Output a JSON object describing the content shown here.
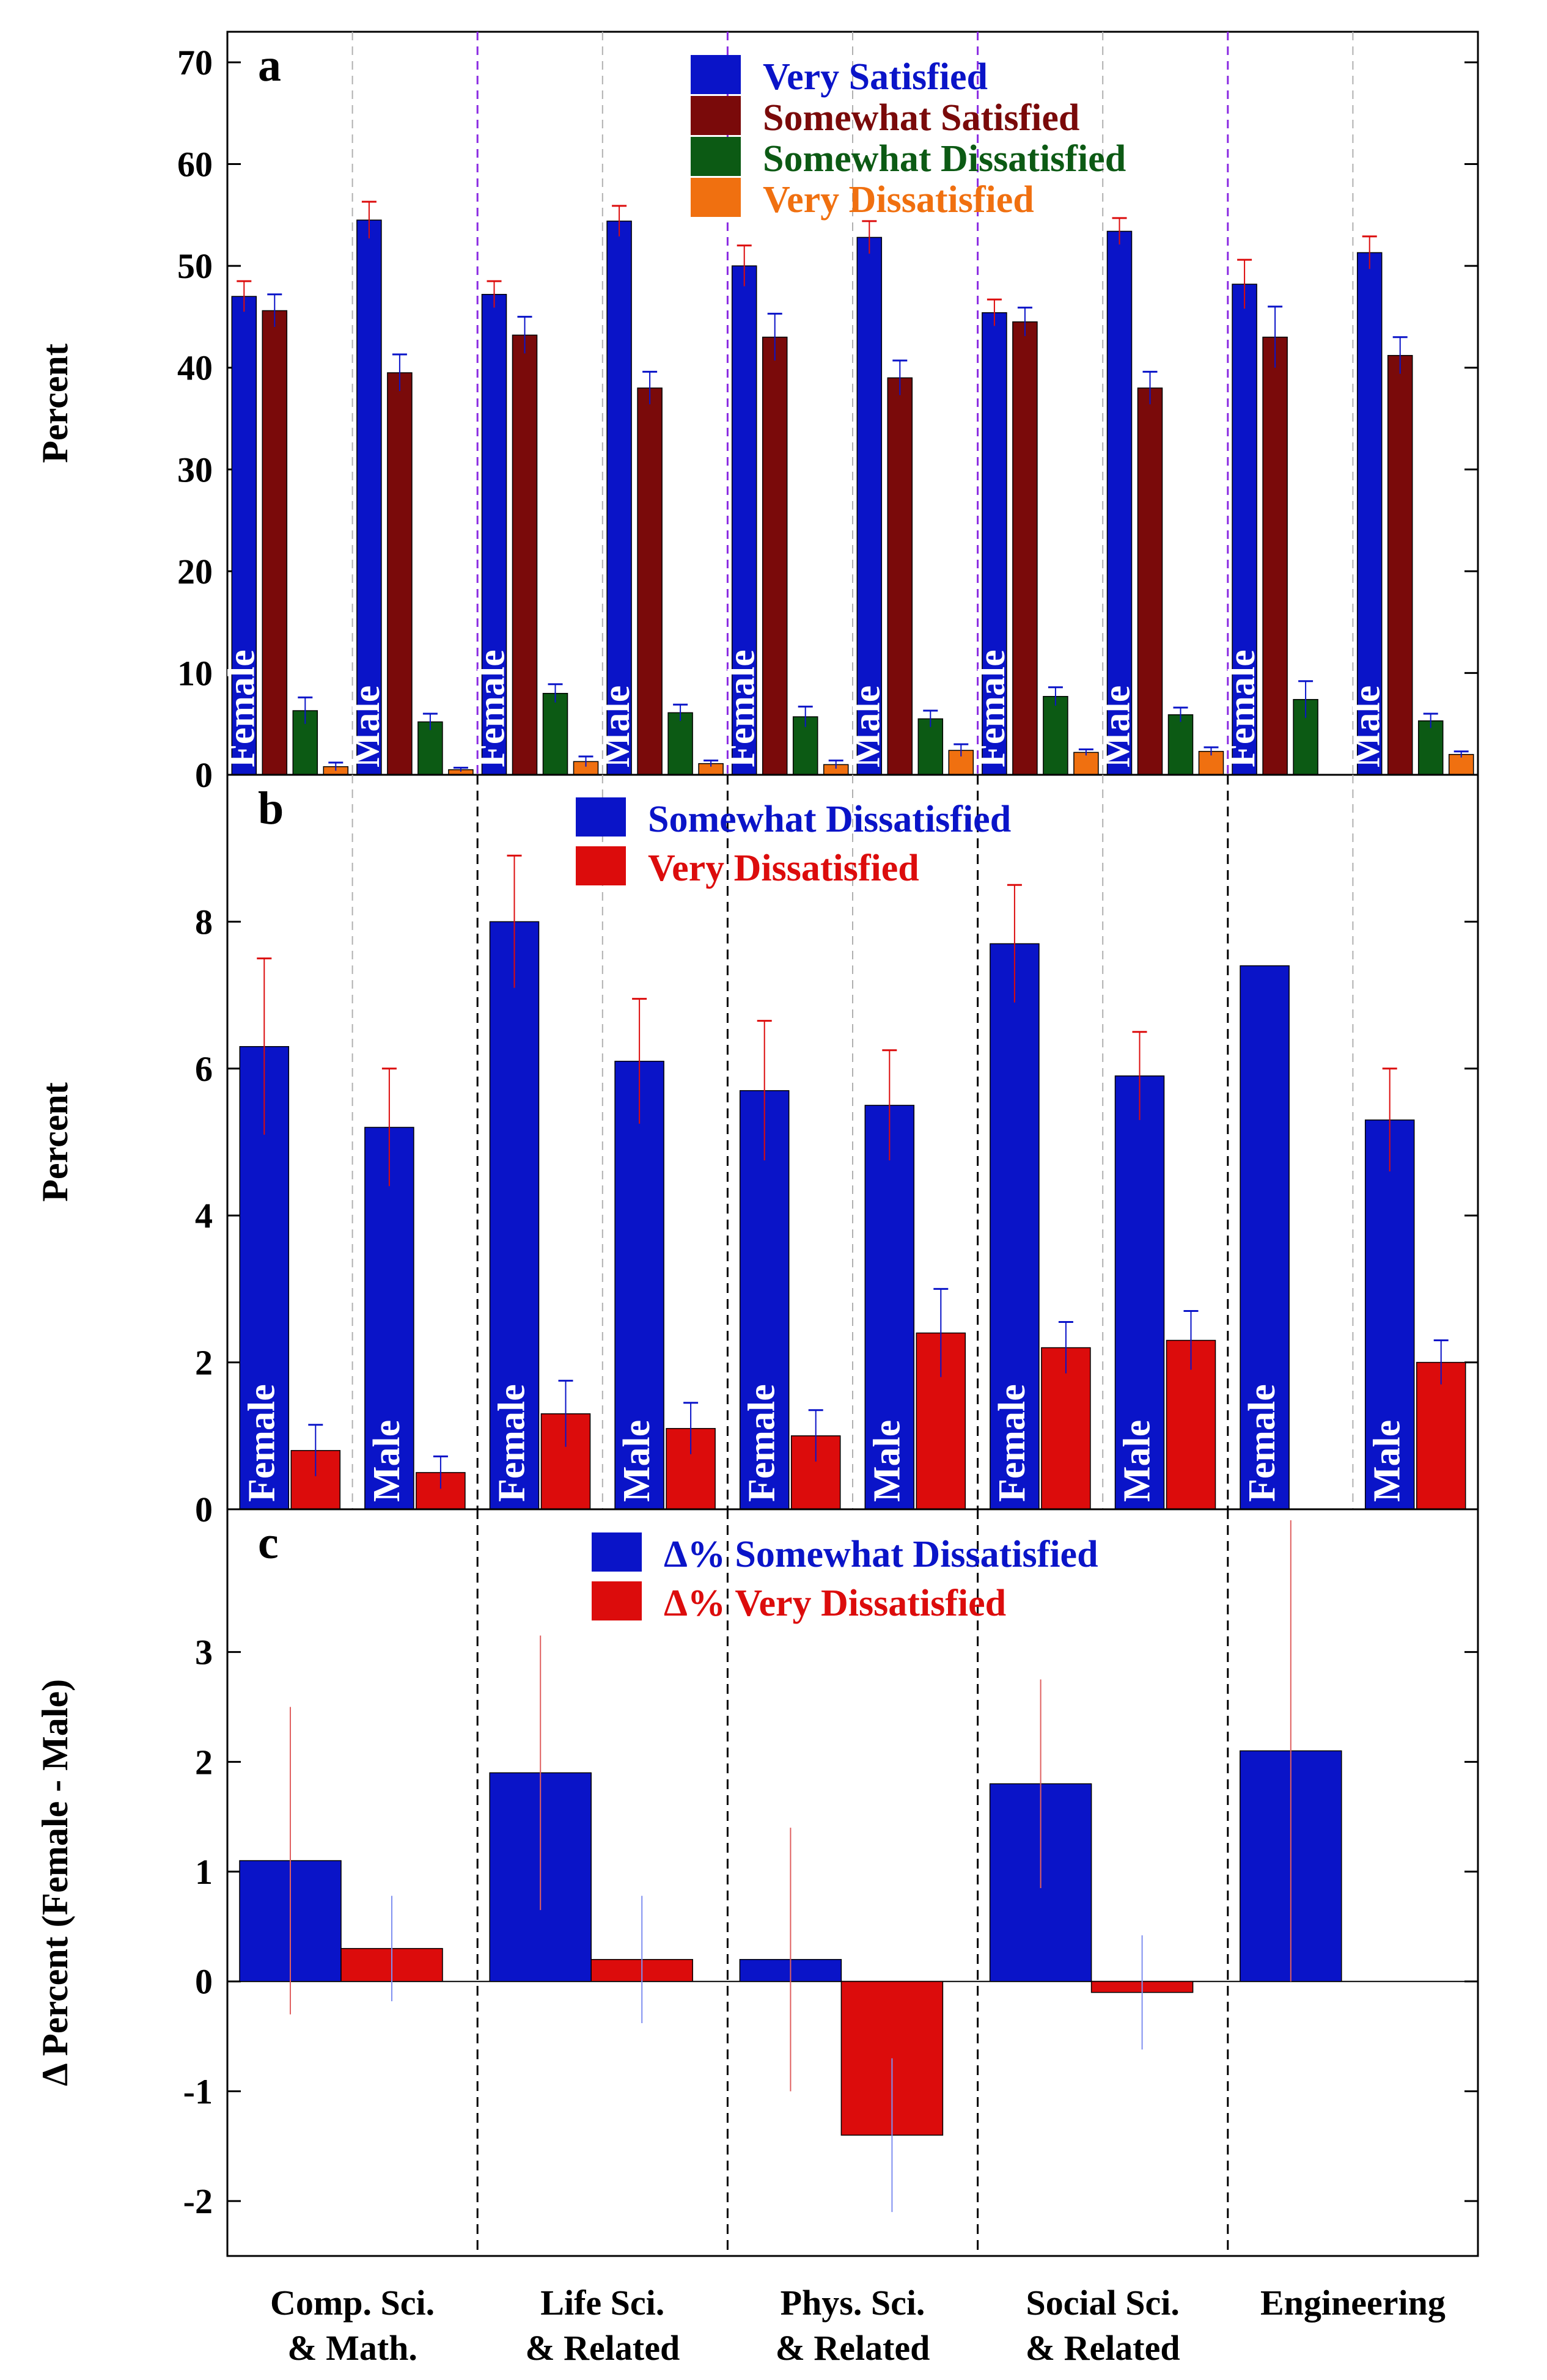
{
  "figure": {
    "colors": {
      "very_satisfied": "#0a14c8",
      "somewhat_satisfied": "#7a0a0a",
      "somewhat_dissatisfied_a": "#0c5a14",
      "very_dissatisfied_a": "#f07010",
      "blue": "#0a14c8",
      "red": "#dc0c0c",
      "purple_divider": "#8a2be2"
    }
  },
  "chart_data": [
    {
      "panel": "a",
      "type": "bar",
      "ylabel": "Percent",
      "ylim": [
        0,
        73
      ],
      "yticks": [
        "0",
        "10",
        "20",
        "30",
        "40",
        "50",
        "60",
        "70"
      ],
      "groups": [
        "Comp. Sci. & Math. Female",
        "Comp. Sci. & Math. Male",
        "Life Sci. & Related Female",
        "Life Sci. & Related Male",
        "Phys. Sci. & Related Female",
        "Phys. Sci. & Related Male",
        "Social Sci. & Related Female",
        "Social Sci. & Related Male",
        "Engineering Female",
        "Engineering Male"
      ],
      "group_labels": [
        "Female",
        "Male",
        "Female",
        "Male",
        "Female",
        "Male",
        "Female",
        "Male",
        "Female",
        "Male"
      ],
      "series": [
        {
          "name": "Very Satisfied",
          "values": [
            47.0,
            54.5,
            47.2,
            54.4,
            50.0,
            52.8,
            45.4,
            53.4,
            48.2,
            51.3
          ]
        },
        {
          "name": "Somewhat Satisfied",
          "values": [
            45.6,
            39.5,
            43.2,
            38.0,
            43.0,
            39.0,
            44.5,
            38.0,
            43.0,
            41.2
          ]
        },
        {
          "name": "Somewhat Dissatisfied",
          "values": [
            6.3,
            5.2,
            8.0,
            6.1,
            5.7,
            5.5,
            7.7,
            5.9,
            7.4,
            5.3
          ]
        },
        {
          "name": "Very Dissatisfied",
          "values": [
            0.8,
            0.5,
            1.3,
            1.1,
            1.0,
            2.4,
            2.2,
            2.3,
            0.0,
            2.0
          ]
        }
      ]
    },
    {
      "panel": "b",
      "type": "bar",
      "ylabel": "Percent",
      "ylim": [
        0,
        10
      ],
      "yticks": [
        "0",
        "2",
        "4",
        "6",
        "8"
      ],
      "groups": [
        "Comp. Sci. & Math. Female",
        "Comp. Sci. & Math. Male",
        "Life Sci. & Related Female",
        "Life Sci. & Related Male",
        "Phys. Sci. & Related Female",
        "Phys. Sci. & Related Male",
        "Social Sci. & Related Female",
        "Social Sci. & Related Male",
        "Engineering Female",
        "Engineering Male"
      ],
      "group_labels": [
        "Female",
        "Male",
        "Female",
        "Male",
        "Female",
        "Male",
        "Female",
        "Male",
        "Female",
        "Male"
      ],
      "series": [
        {
          "name": "Somewhat Dissatisfied",
          "values": [
            6.3,
            5.2,
            8.0,
            6.1,
            5.7,
            5.5,
            7.7,
            5.9,
            7.4,
            5.3
          ]
        },
        {
          "name": "Very Dissatisfied",
          "values": [
            0.8,
            0.5,
            1.3,
            1.1,
            1.0,
            2.4,
            2.2,
            2.3,
            0.0,
            2.0
          ]
        }
      ]
    },
    {
      "panel": "c",
      "type": "bar",
      "ylabel": "Δ Percent (Female - Male)",
      "ylim": [
        -2.5,
        4.3
      ],
      "yticks": [
        "-2",
        "-1",
        "0",
        "1",
        "2",
        "3"
      ],
      "categories": [
        "Comp. Sci. & Math.",
        "Life Sci. & Related",
        "Phys. Sci. & Related",
        "Social Sci. & Related",
        "Engineering"
      ],
      "xtick_lines": [
        [
          "Comp. Sci.",
          "& Math."
        ],
        [
          "Life Sci.",
          "& Related"
        ],
        [
          "Phys. Sci.",
          "& Related"
        ],
        [
          "Social Sci.",
          "& Related"
        ],
        [
          "Engineering",
          ""
        ]
      ],
      "series": [
        {
          "name": "Δ% Somewhat Dissatisfied",
          "values": [
            1.1,
            1.9,
            0.2,
            1.8,
            2.1
          ]
        },
        {
          "name": "Δ% Very Dissatisfied",
          "values": [
            0.3,
            0.2,
            -1.4,
            -0.1,
            null
          ]
        }
      ]
    }
  ]
}
